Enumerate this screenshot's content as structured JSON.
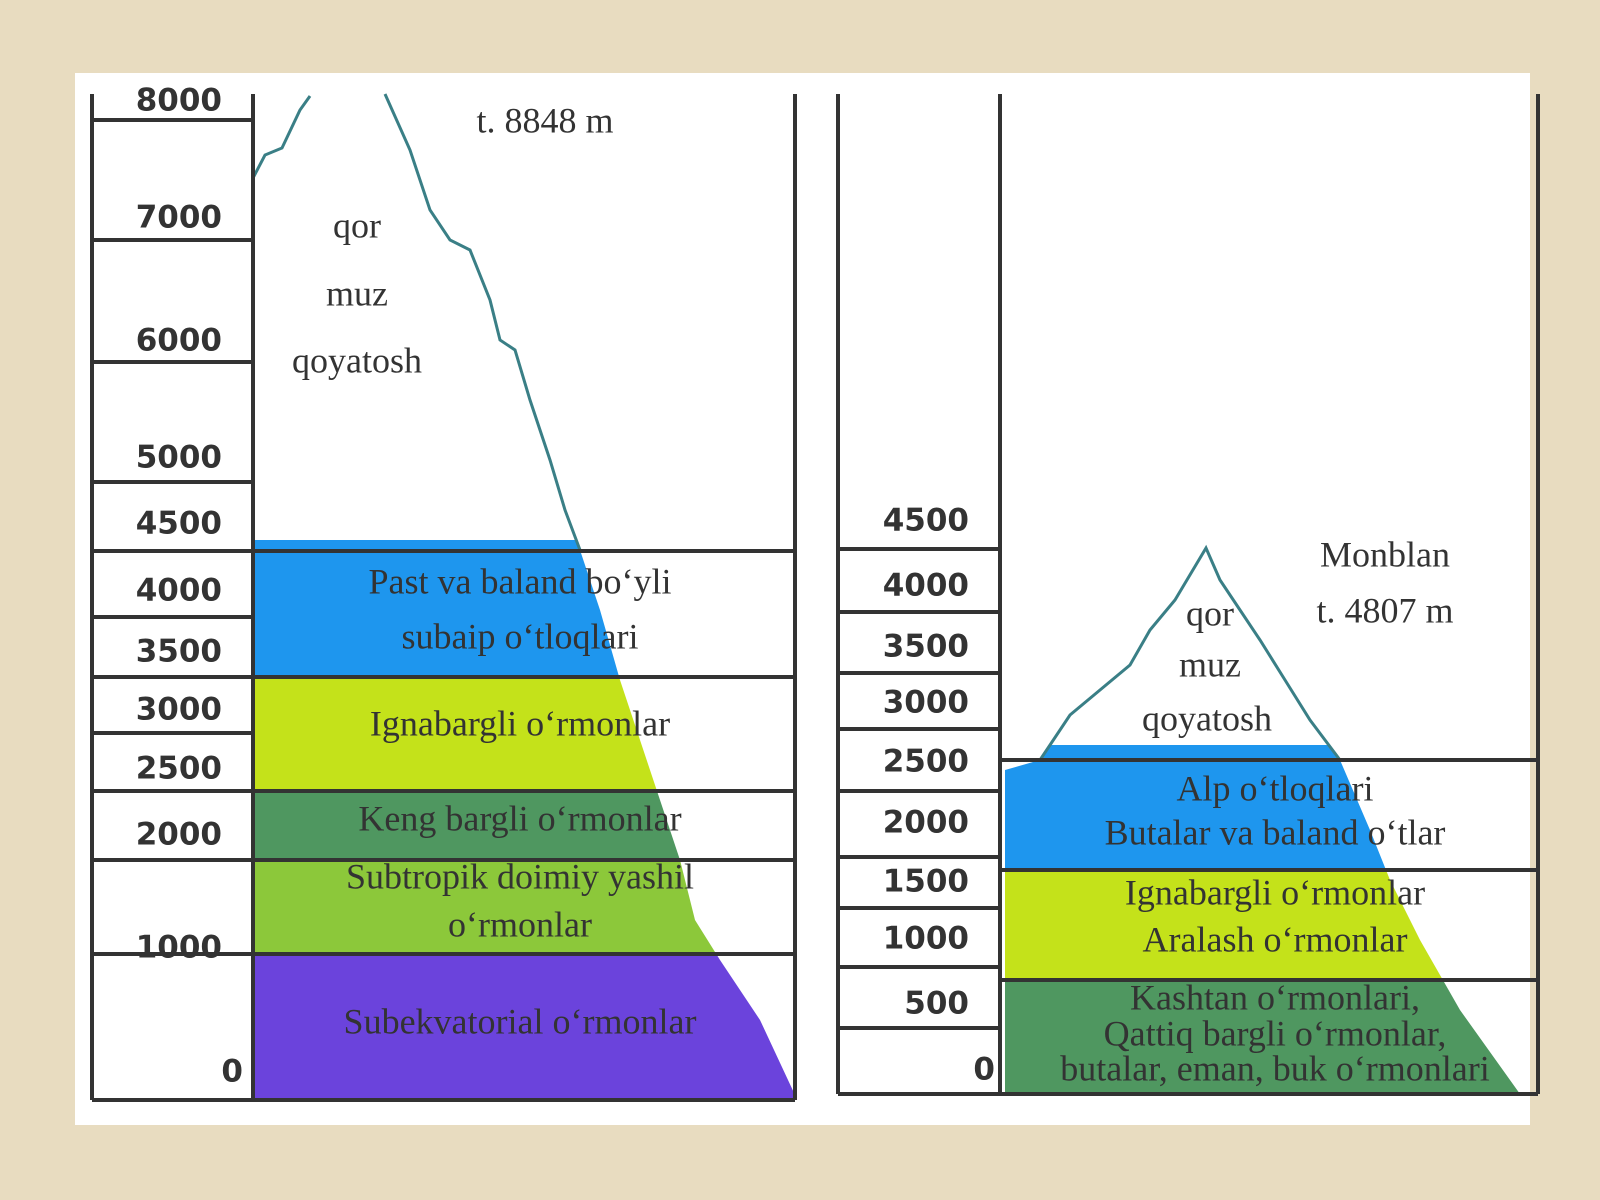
{
  "left": {
    "peak": "t. 8848 m",
    "snow": [
      "qor",
      "muz",
      "qoyatosh"
    ],
    "zones": [
      {
        "lines": [
          "Past va baland bo‘yli",
          "subaip o‘tloqlari"
        ]
      },
      {
        "lines": [
          "Ignabargli o‘rmonlar"
        ]
      },
      {
        "lines": [
          "Keng bargli o‘rmonlar"
        ]
      },
      {
        "lines": [
          "Subtropik doimiy yashil",
          "o‘rmonlar"
        ]
      },
      {
        "lines": [
          "Subekvatorial o‘rmonlar"
        ]
      }
    ],
    "scale": [
      "8000",
      "7000",
      "6000",
      "5000",
      "4500",
      "4000",
      "3500",
      "3000",
      "2500",
      "2000",
      "1000",
      "0"
    ]
  },
  "right": {
    "name": "Monblan",
    "peak": "t. 4807 m",
    "snow": [
      "qor",
      "muz",
      "qoyatosh"
    ],
    "zones": [
      {
        "lines": [
          "Alp o‘tloqlari",
          "Butalar va baland o‘tlar"
        ]
      },
      {
        "lines": [
          "Ignabargli o‘rmonlar",
          "Aralash o‘rmonlar"
        ]
      },
      {
        "lines": [
          "Kashtan o‘rmonlari,",
          "Qattiq bargli o‘rmonlar,",
          "butalar, eman, buk o‘rmonlari"
        ]
      }
    ],
    "scale": [
      "4500",
      "4000",
      "3500",
      "3000",
      "2500",
      "2000",
      "1500",
      "1000",
      "500",
      "0"
    ]
  }
}
